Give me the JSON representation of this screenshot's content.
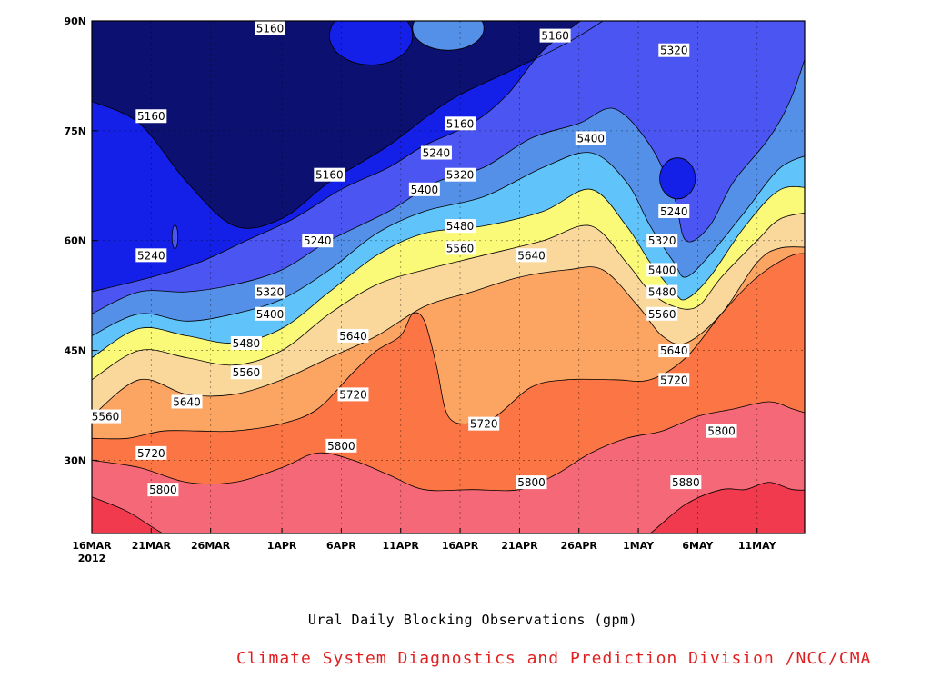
{
  "chart_data": {
    "type": "heatmap",
    "title": "Ural Daily Blocking Observations (gpm)",
    "x_ticks": [
      "16MAR",
      "21MAR",
      "26MAR",
      "1APR",
      "6APR",
      "11APR",
      "16APR",
      "21APR",
      "26APR",
      "1MAY",
      "6MAY",
      "11MAY"
    ],
    "x_year": "2012",
    "x_range": [
      "2012-03-16",
      "2012-05-15"
    ],
    "y_ticks": [
      "90N",
      "75N",
      "60N",
      "45N",
      "30N"
    ],
    "y_range": [
      20,
      90
    ],
    "grid": true,
    "contour_levels": [
      5160,
      5240,
      5320,
      5400,
      5480,
      5560,
      5640,
      5720,
      5800,
      5880
    ],
    "band_colors": [
      "#0c1070",
      "#1420e8",
      "#4a55f2",
      "#5590e8",
      "#60c4fa",
      "#fafa78",
      "#fad89c",
      "#fca462",
      "#fb7545",
      "#f56878",
      "#f23a4e"
    ],
    "contour_labels": [
      {
        "value": "5160",
        "date": "2012-03-31",
        "lat": 89
      },
      {
        "value": "5160",
        "date": "2012-04-24",
        "lat": 88
      },
      {
        "value": "5160",
        "date": "2012-03-21",
        "lat": 77
      },
      {
        "value": "5160",
        "date": "2012-04-16",
        "lat": 76
      },
      {
        "value": "5160",
        "date": "2012-04-05",
        "lat": 69
      },
      {
        "value": "5240",
        "date": "2012-03-21",
        "lat": 58
      },
      {
        "value": "5240",
        "date": "2012-04-04",
        "lat": 60
      },
      {
        "value": "5240",
        "date": "2012-04-14",
        "lat": 72
      },
      {
        "value": "5240",
        "date": "2012-05-04",
        "lat": 64
      },
      {
        "value": "5320",
        "date": "2012-03-31",
        "lat": 53
      },
      {
        "value": "5320",
        "date": "2012-04-16",
        "lat": 69
      },
      {
        "value": "5320",
        "date": "2012-05-04",
        "lat": 86
      },
      {
        "value": "5320",
        "date": "2012-05-03",
        "lat": 60
      },
      {
        "value": "5400",
        "date": "2012-03-31",
        "lat": 50
      },
      {
        "value": "5400",
        "date": "2012-04-13",
        "lat": 67
      },
      {
        "value": "5400",
        "date": "2012-04-27",
        "lat": 74
      },
      {
        "value": "5400",
        "date": "2012-05-03",
        "lat": 56
      },
      {
        "value": "5480",
        "date": "2012-03-29",
        "lat": 46
      },
      {
        "value": "5480",
        "date": "2012-04-16",
        "lat": 62
      },
      {
        "value": "5480",
        "date": "2012-05-03",
        "lat": 53
      },
      {
        "value": "5560",
        "date": "2012-03-16",
        "lat": 36
      },
      {
        "value": "5560",
        "date": "2012-03-29",
        "lat": 42
      },
      {
        "value": "5560",
        "date": "2012-04-16",
        "lat": 59
      },
      {
        "value": "5560",
        "date": "2012-05-03",
        "lat": 50
      },
      {
        "value": "5640",
        "date": "2012-03-24",
        "lat": 38
      },
      {
        "value": "5640",
        "date": "2012-04-07",
        "lat": 47
      },
      {
        "value": "5640",
        "date": "2012-04-22",
        "lat": 58
      },
      {
        "value": "5640",
        "date": "2012-05-04",
        "lat": 45
      },
      {
        "value": "5720",
        "date": "2012-03-21",
        "lat": 31
      },
      {
        "value": "5720",
        "date": "2012-04-07",
        "lat": 39
      },
      {
        "value": "5720",
        "date": "2012-04-18",
        "lat": 35
      },
      {
        "value": "5720",
        "date": "2012-05-04",
        "lat": 41
      },
      {
        "value": "5800",
        "date": "2012-03-22",
        "lat": 26
      },
      {
        "value": "5800",
        "date": "2012-04-06",
        "lat": 32
      },
      {
        "value": "5800",
        "date": "2012-04-22",
        "lat": 27
      },
      {
        "value": "5800",
        "date": "2012-05-08",
        "lat": 34
      },
      {
        "value": "5880",
        "date": "2012-05-05",
        "lat": 27
      }
    ]
  },
  "footer": {
    "credit": "Climate System Diagnostics and Prediction Division /NCC/CMA"
  }
}
